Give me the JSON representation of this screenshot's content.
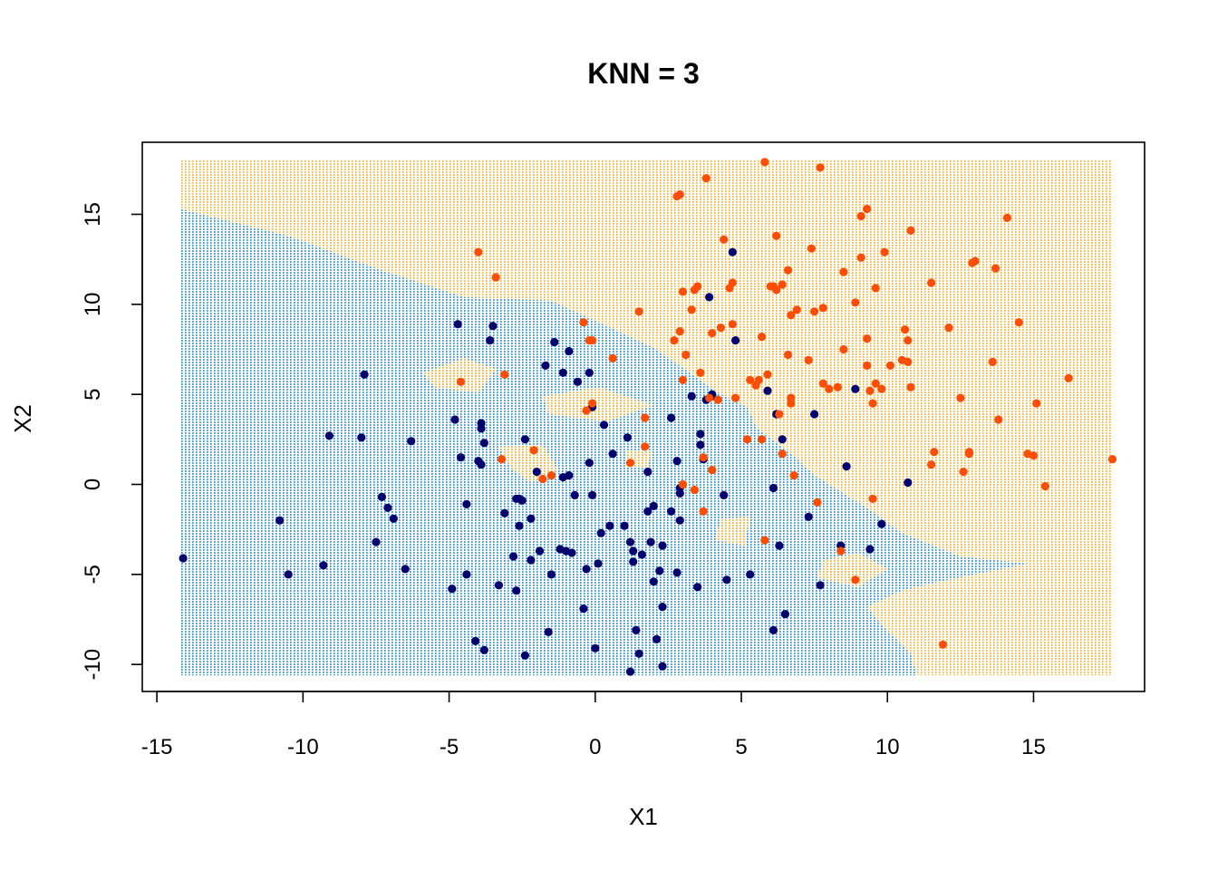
{
  "chart_data": {
    "type": "scatter",
    "title": "KNN = 3",
    "xlabel": "X1",
    "ylabel": "X2",
    "xlim": [
      -15.5,
      18.8
    ],
    "ylim": [
      -11.5,
      19.0
    ],
    "grid": false,
    "legend": "none",
    "x_ticks": [
      -15,
      -10,
      -5,
      0,
      5,
      10,
      15
    ],
    "y_ticks": [
      -10,
      -5,
      0,
      5,
      10,
      15
    ],
    "colors": {
      "region_class_0": "#3d9ad6",
      "region_class_1": "#f5b84a",
      "class_0_points": "#00006e",
      "class_1_points": "#ff4d00",
      "frame": "#000000"
    },
    "decision_regions": {
      "x_range": [
        -14.2,
        17.7
      ],
      "y_range": [
        -10.6,
        18.0
      ],
      "class_0_polygons": [
        [
          [
            -14.2,
            -10.6
          ],
          [
            -14.2,
            15.3
          ],
          [
            -10.5,
            13.8
          ],
          [
            -7.5,
            12.0
          ],
          [
            -4.5,
            10.4
          ],
          [
            -1.5,
            10.2
          ],
          [
            2.0,
            7.6
          ],
          [
            4.3,
            5.0
          ],
          [
            5.2,
            4.3
          ],
          [
            5.5,
            3.2
          ],
          [
            7.0,
            1.3
          ],
          [
            7.5,
            0.5
          ],
          [
            8.5,
            -0.5
          ],
          [
            9.5,
            -1.5
          ],
          [
            10.5,
            -2.7
          ],
          [
            12.5,
            -4.0
          ],
          [
            14.8,
            -4.4
          ],
          [
            11.5,
            -5.5
          ],
          [
            10.5,
            -5.9
          ],
          [
            9.3,
            -6.8
          ],
          [
            9.8,
            -7.8
          ],
          [
            10.8,
            -9.4
          ],
          [
            11.0,
            -10.6
          ]
        ]
      ],
      "class_1_polygons": [
        [
          [
            -5.9,
            6.2
          ],
          [
            -4.5,
            7.0
          ],
          [
            -3.4,
            6.4
          ],
          [
            -4.0,
            5.1
          ],
          [
            -5.5,
            5.4
          ]
        ],
        [
          [
            -1.8,
            4.9
          ],
          [
            0.1,
            5.4
          ],
          [
            2.0,
            4.4
          ],
          [
            0.4,
            3.5
          ],
          [
            -1.6,
            3.9
          ]
        ],
        [
          [
            -3.3,
            2.1
          ],
          [
            -1.8,
            2.2
          ],
          [
            -1.3,
            0.8
          ],
          [
            -2.2,
            0.1
          ],
          [
            -2.9,
            0.9
          ]
        ],
        [
          [
            1.1,
            1.9
          ],
          [
            1.9,
            1.8
          ],
          [
            1.8,
            0.9
          ],
          [
            1.0,
            1.0
          ]
        ],
        [
          [
            4.3,
            -1.9
          ],
          [
            5.3,
            -1.8
          ],
          [
            5.1,
            -3.4
          ],
          [
            4.1,
            -3.1
          ]
        ],
        [
          [
            7.8,
            -4.2
          ],
          [
            9.0,
            -3.8
          ],
          [
            10.0,
            -4.7
          ],
          [
            9.0,
            -5.7
          ],
          [
            7.6,
            -5.2
          ]
        ]
      ]
    },
    "series": [
      {
        "class": 0,
        "points": [
          [
            -14.1,
            -4.1
          ],
          [
            -10.8,
            -2.0
          ],
          [
            -10.5,
            -5.0
          ],
          [
            -9.3,
            -4.5
          ],
          [
            -9.1,
            2.7
          ],
          [
            -8.0,
            2.6
          ],
          [
            -7.9,
            6.1
          ],
          [
            -7.5,
            -3.2
          ],
          [
            -7.3,
            -0.7
          ],
          [
            -7.1,
            -1.3
          ],
          [
            -6.9,
            -1.9
          ],
          [
            -6.5,
            -4.7
          ],
          [
            -6.3,
            2.4
          ],
          [
            -4.9,
            -5.8
          ],
          [
            -4.8,
            3.6
          ],
          [
            -4.7,
            8.9
          ],
          [
            -4.6,
            1.5
          ],
          [
            -4.4,
            -1.1
          ],
          [
            -4.4,
            -5.0
          ],
          [
            -4.1,
            -8.7
          ],
          [
            -4.0,
            1.3
          ],
          [
            -3.9,
            1.1
          ],
          [
            -3.9,
            3.1
          ],
          [
            -3.9,
            3.4
          ],
          [
            -3.8,
            2.3
          ],
          [
            -3.8,
            -9.2
          ],
          [
            -3.6,
            8.0
          ],
          [
            -3.5,
            8.8
          ],
          [
            -3.3,
            -5.6
          ],
          [
            -3.1,
            -1.6
          ],
          [
            -2.8,
            -4.0
          ],
          [
            -2.7,
            -5.9
          ],
          [
            -2.7,
            -0.8
          ],
          [
            -2.6,
            -0.8
          ],
          [
            -2.6,
            -2.3
          ],
          [
            -2.5,
            -0.9
          ],
          [
            -2.4,
            -9.5
          ],
          [
            -2.4,
            2.5
          ],
          [
            -2.2,
            -4.2
          ],
          [
            -2.2,
            -1.9
          ],
          [
            -2.0,
            0.7
          ],
          [
            -1.9,
            -3.7
          ],
          [
            -1.7,
            6.6
          ],
          [
            -1.6,
            -8.2
          ],
          [
            -1.5,
            -5.0
          ],
          [
            -1.4,
            7.9
          ],
          [
            -1.2,
            -3.6
          ],
          [
            -1.1,
            0.4
          ],
          [
            -1.1,
            6.2
          ],
          [
            -1.0,
            -3.7
          ],
          [
            -0.9,
            7.4
          ],
          [
            -0.9,
            0.5
          ],
          [
            -0.8,
            -3.8
          ],
          [
            -0.7,
            -0.6
          ],
          [
            -0.6,
            5.7
          ],
          [
            -0.4,
            -6.9
          ],
          [
            -0.3,
            -4.7
          ],
          [
            -0.2,
            6.2
          ],
          [
            -0.2,
            1.2
          ],
          [
            -0.1,
            -0.6
          ],
          [
            -0.1,
            4.3
          ],
          [
            0.0,
            -9.1
          ],
          [
            0.1,
            -4.4
          ],
          [
            0.2,
            -2.7
          ],
          [
            0.3,
            3.3
          ],
          [
            0.5,
            -2.3
          ],
          [
            0.6,
            1.7
          ],
          [
            1.0,
            -2.3
          ],
          [
            1.1,
            2.6
          ],
          [
            1.2,
            -3.2
          ],
          [
            1.2,
            -10.4
          ],
          [
            1.3,
            -3.7
          ],
          [
            1.3,
            -4.3
          ],
          [
            1.4,
            -8.1
          ],
          [
            1.5,
            -9.4
          ],
          [
            1.6,
            -3.9
          ],
          [
            1.8,
            -1.5
          ],
          [
            1.8,
            0.7
          ],
          [
            1.9,
            -3.2
          ],
          [
            2.0,
            -5.4
          ],
          [
            2.0,
            -1.2
          ],
          [
            2.1,
            -8.6
          ],
          [
            2.2,
            -4.8
          ],
          [
            2.3,
            -10.1
          ],
          [
            2.3,
            -3.4
          ],
          [
            2.3,
            -6.8
          ],
          [
            2.6,
            -1.5
          ],
          [
            2.6,
            3.7
          ],
          [
            2.8,
            1.3
          ],
          [
            2.8,
            -4.9
          ],
          [
            2.9,
            -0.5
          ],
          [
            2.9,
            -0.2
          ],
          [
            2.9,
            -2.0
          ],
          [
            3.3,
            4.9
          ],
          [
            3.5,
            -5.7
          ],
          [
            3.6,
            2.8
          ],
          [
            3.6,
            2.2
          ],
          [
            3.7,
            1.4
          ],
          [
            3.8,
            4.7
          ],
          [
            3.9,
            10.4
          ],
          [
            4.0,
            4.9
          ],
          [
            4.0,
            5.0
          ],
          [
            4.4,
            -0.6
          ],
          [
            4.5,
            -5.3
          ],
          [
            4.7,
            12.9
          ],
          [
            4.8,
            8.0
          ],
          [
            5.3,
            -5.0
          ],
          [
            5.9,
            5.2
          ],
          [
            6.1,
            -8.1
          ],
          [
            6.1,
            -0.2
          ],
          [
            6.2,
            3.9
          ],
          [
            6.3,
            -3.4
          ],
          [
            6.4,
            2.5
          ],
          [
            6.5,
            -7.2
          ],
          [
            7.3,
            -1.8
          ],
          [
            7.5,
            3.9
          ],
          [
            7.7,
            -5.6
          ],
          [
            8.4,
            -3.4
          ],
          [
            8.6,
            1.0
          ],
          [
            8.9,
            5.3
          ],
          [
            9.4,
            -3.6
          ],
          [
            9.8,
            -2.2
          ],
          [
            10.7,
            0.1
          ]
        ]
      },
      {
        "class": 1,
        "points": [
          [
            -4.0,
            12.9
          ],
          [
            -3.4,
            11.5
          ],
          [
            -3.1,
            6.1
          ],
          [
            -3.2,
            1.4
          ],
          [
            -4.6,
            5.7
          ],
          [
            -2.1,
            1.9
          ],
          [
            -1.8,
            0.3
          ],
          [
            -1.5,
            0.5
          ],
          [
            -0.4,
            9.0
          ],
          [
            -0.2,
            8.0
          ],
          [
            -0.1,
            8.0
          ],
          [
            -0.3,
            4.1
          ],
          [
            -0.1,
            4.5
          ],
          [
            0.6,
            7.0
          ],
          [
            1.2,
            1.2
          ],
          [
            1.5,
            9.6
          ],
          [
            1.7,
            3.7
          ],
          [
            1.7,
            2.1
          ],
          [
            2.7,
            8.0
          ],
          [
            2.8,
            16.0
          ],
          [
            2.9,
            16.1
          ],
          [
            2.9,
            8.5
          ],
          [
            3.0,
            5.8
          ],
          [
            3.0,
            0.0
          ],
          [
            3.0,
            10.7
          ],
          [
            3.1,
            7.2
          ],
          [
            3.3,
            9.7
          ],
          [
            3.4,
            10.8
          ],
          [
            3.5,
            11.0
          ],
          [
            3.6,
            6.2
          ],
          [
            3.4,
            -0.3
          ],
          [
            3.7,
            1.5
          ],
          [
            3.7,
            -1.5
          ],
          [
            3.8,
            17.0
          ],
          [
            3.9,
            4.8
          ],
          [
            4.0,
            8.4
          ],
          [
            4.0,
            0.8
          ],
          [
            4.2,
            4.7
          ],
          [
            4.3,
            8.7
          ],
          [
            4.4,
            13.6
          ],
          [
            4.6,
            10.9
          ],
          [
            4.7,
            11.2
          ],
          [
            4.7,
            8.9
          ],
          [
            4.8,
            4.8
          ],
          [
            5.2,
            2.5
          ],
          [
            5.3,
            5.8
          ],
          [
            5.5,
            5.5
          ],
          [
            5.6,
            5.8
          ],
          [
            5.7,
            8.2
          ],
          [
            5.7,
            2.5
          ],
          [
            5.8,
            17.9
          ],
          [
            5.8,
            -3.1
          ],
          [
            5.9,
            6.1
          ],
          [
            6.0,
            11.0
          ],
          [
            6.1,
            11.0
          ],
          [
            6.2,
            10.8
          ],
          [
            6.2,
            13.8
          ],
          [
            6.3,
            3.9
          ],
          [
            6.4,
            1.7
          ],
          [
            6.4,
            11.1
          ],
          [
            6.6,
            11.9
          ],
          [
            6.6,
            7.2
          ],
          [
            6.7,
            4.8
          ],
          [
            6.7,
            4.5
          ],
          [
            6.7,
            9.4
          ],
          [
            6.8,
            0.5
          ],
          [
            6.9,
            9.7
          ],
          [
            7.3,
            6.9
          ],
          [
            7.4,
            13.1
          ],
          [
            7.5,
            9.6
          ],
          [
            7.6,
            -1.0
          ],
          [
            7.7,
            17.6
          ],
          [
            7.8,
            9.8
          ],
          [
            7.8,
            5.6
          ],
          [
            8.0,
            5.3
          ],
          [
            8.3,
            5.4
          ],
          [
            8.4,
            -3.7
          ],
          [
            8.5,
            11.8
          ],
          [
            8.5,
            7.5
          ],
          [
            8.9,
            10.1
          ],
          [
            8.9,
            -5.3
          ],
          [
            9.1,
            12.6
          ],
          [
            9.1,
            14.9
          ],
          [
            9.3,
            15.3
          ],
          [
            9.3,
            8.1
          ],
          [
            9.3,
            6.6
          ],
          [
            9.4,
            5.2
          ],
          [
            9.5,
            4.5
          ],
          [
            9.5,
            -0.8
          ],
          [
            9.6,
            5.6
          ],
          [
            9.6,
            10.9
          ],
          [
            9.8,
            5.3
          ],
          [
            9.9,
            12.9
          ],
          [
            10.1,
            6.6
          ],
          [
            10.5,
            6.9
          ],
          [
            10.6,
            8.6
          ],
          [
            10.7,
            6.8
          ],
          [
            10.7,
            8.0
          ],
          [
            10.8,
            14.1
          ],
          [
            10.8,
            5.4
          ],
          [
            11.5,
            11.2
          ],
          [
            11.6,
            1.8
          ],
          [
            11.5,
            1.1
          ],
          [
            11.9,
            -8.9
          ],
          [
            12.1,
            8.7
          ],
          [
            12.5,
            4.8
          ],
          [
            12.6,
            0.7
          ],
          [
            12.8,
            1.7
          ],
          [
            12.8,
            1.8
          ],
          [
            12.9,
            12.3
          ],
          [
            13.0,
            12.4
          ],
          [
            13.6,
            6.8
          ],
          [
            13.7,
            12.0
          ],
          [
            13.8,
            3.6
          ],
          [
            14.1,
            14.8
          ],
          [
            14.5,
            9.0
          ],
          [
            14.8,
            1.7
          ],
          [
            15.0,
            1.6
          ],
          [
            15.1,
            4.5
          ],
          [
            15.4,
            -0.1
          ],
          [
            16.2,
            5.9
          ],
          [
            17.7,
            1.4
          ]
        ]
      }
    ]
  }
}
